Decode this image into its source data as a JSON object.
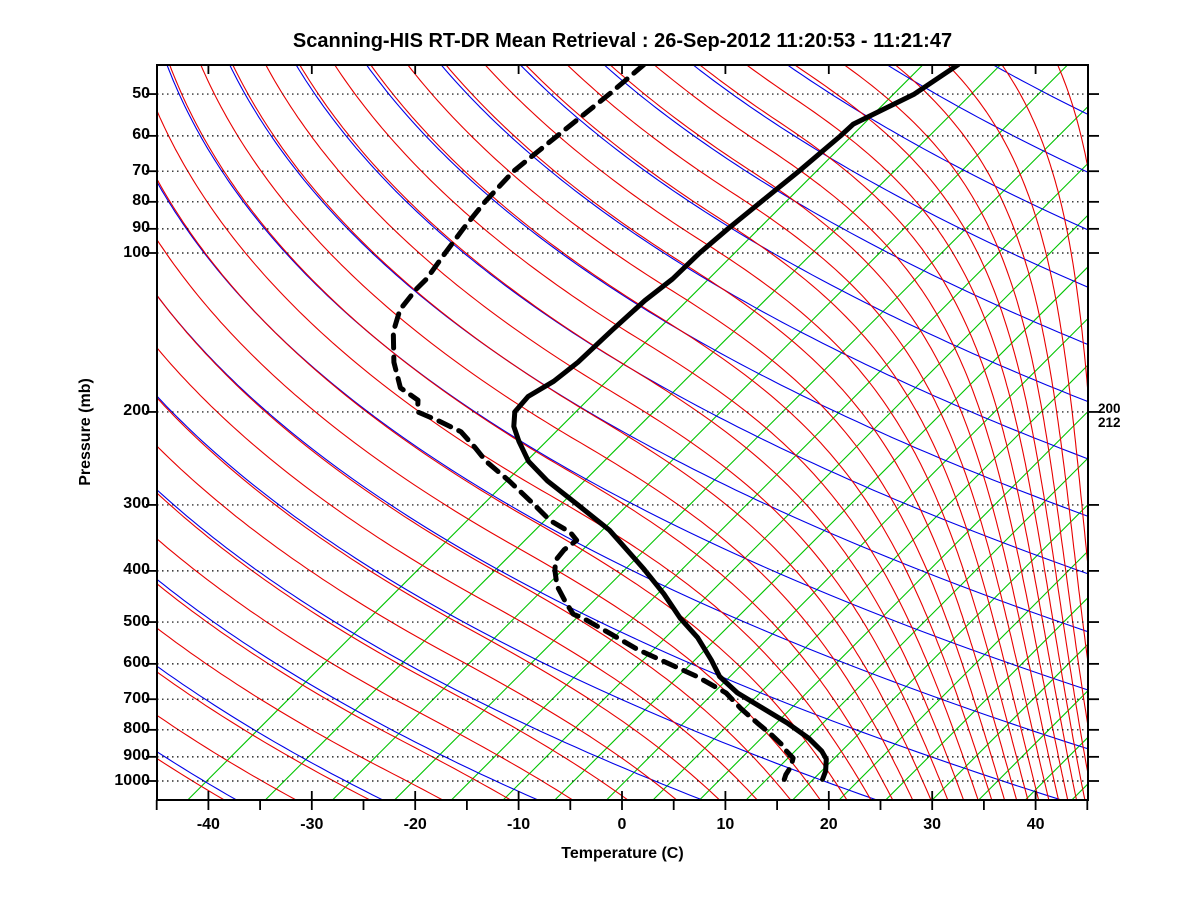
{
  "header": {
    "title": "Scanning-HIS RT-DR Mean Retrieval : 26-Sep-2012 11:20:53 - 11:21:47"
  },
  "axes": {
    "x_label": "Temperature (C)",
    "y_label": "Pressure (mb)",
    "x_tick_labels": [
      "-40",
      "-30",
      "-20",
      "-10",
      "0",
      "10",
      "20",
      "30",
      "40"
    ],
    "x_tick_values": [
      -40,
      -30,
      -20,
      -10,
      0,
      10,
      20,
      30,
      40
    ],
    "y_tick_labels": [
      "50",
      "60",
      "70",
      "80",
      "90",
      "100",
      "200",
      "300",
      "400",
      "500",
      "600",
      "700",
      "800",
      "900",
      "1000"
    ],
    "y_tick_values": [
      50,
      60,
      70,
      80,
      90,
      100,
      200,
      300,
      400,
      500,
      600,
      700,
      800,
      900,
      1000
    ]
  },
  "annotations": {
    "right_labels": [
      "200",
      "212"
    ]
  },
  "colors": {
    "isotherm": "#00c400",
    "dry_adiabat": "#0000e8",
    "moist_adiabat": "#e80000",
    "profile": "#000000",
    "grid": "#000000",
    "frame": "#000000"
  },
  "chart_data": {
    "type": "line",
    "title": "Scanning-HIS RT-DR Mean Retrieval : 26-Sep-2012 11:20:53 - 11:21:47",
    "xlabel": "Temperature (C)",
    "ylabel": "Pressure (mb)",
    "x_axis": {
      "surface_temp_range_c": [
        -45,
        45
      ],
      "major_tick_step": 10,
      "minor_tick_step": 5
    },
    "y_axis": {
      "scale": "log",
      "pressure_range_mb": [
        44,
        1086
      ],
      "gridline_pressures": [
        50,
        60,
        70,
        80,
        90,
        100,
        200,
        300,
        400,
        500,
        600,
        700,
        800,
        900,
        1000
      ]
    },
    "skew_deg": 45,
    "background": {
      "isotherm_surface_temps_c": [
        -42,
        -34.5,
        -28,
        -22,
        -16.5,
        -11.5,
        -6.5,
        -1.5,
        3,
        7.5,
        12,
        16.5,
        21,
        25.5,
        30,
        34.5,
        39,
        43.5
      ],
      "dry_adiabats": {
        "surface_base_k": 250,
        "ratio": 1.06,
        "k_min": -8,
        "k_max": 20
      },
      "moist_adiabats": {
        "surface_base_k": 250,
        "ratio": 1.0296,
        "j_min": -16,
        "j_max": 33
      }
    },
    "right_annotation": {
      "pressure_mb": 200,
      "lines": [
        "200",
        "212"
      ]
    },
    "series": [
      {
        "name": "temperature",
        "line": "solid",
        "width": 5,
        "points_p_t": [
          [
            44,
            -38.6
          ],
          [
            50,
            -40.0
          ],
          [
            57,
            -43.0
          ],
          [
            60,
            -43.1
          ],
          [
            70,
            -43.7
          ],
          [
            80,
            -44.4
          ],
          [
            90,
            -45.0
          ],
          [
            100,
            -45.4
          ],
          [
            112,
            -45.5
          ],
          [
            123,
            -46.1
          ],
          [
            140,
            -46.4
          ],
          [
            161,
            -46.6
          ],
          [
            175,
            -47.1
          ],
          [
            187,
            -48.1
          ],
          [
            200,
            -47.9
          ],
          [
            213,
            -46.6
          ],
          [
            227,
            -44.7
          ],
          [
            248,
            -41.8
          ],
          [
            270,
            -38.1
          ],
          [
            300,
            -32.8
          ],
          [
            335,
            -27.3
          ],
          [
            397,
            -20.2
          ],
          [
            442,
            -15.9
          ],
          [
            491,
            -12.0
          ],
          [
            535,
            -8.4
          ],
          [
            590,
            -4.9
          ],
          [
            634,
            -2.5
          ],
          [
            681,
            0.8
          ],
          [
            730,
            4.9
          ],
          [
            776,
            8.5
          ],
          [
            830,
            12.1
          ],
          [
            878,
            14.6
          ],
          [
            909,
            15.8
          ],
          [
            958,
            16.9
          ],
          [
            993,
            17.4
          ]
        ]
      },
      {
        "name": "dewpoint",
        "line": "dashed",
        "width": 5,
        "points_p_t": [
          [
            44,
            -69.0
          ],
          [
            50,
            -69.5
          ],
          [
            60,
            -70.5
          ],
          [
            70,
            -71.3
          ],
          [
            80,
            -71.1
          ],
          [
            90,
            -70.6
          ],
          [
            100,
            -70.0
          ],
          [
            112,
            -69.3
          ],
          [
            117,
            -69.3
          ],
          [
            128,
            -68.9
          ],
          [
            141,
            -67.4
          ],
          [
            161,
            -64.4
          ],
          [
            180,
            -61.3
          ],
          [
            190,
            -58.4
          ],
          [
            200,
            -57.3
          ],
          [
            208,
            -54.4
          ],
          [
            218,
            -51.2
          ],
          [
            233,
            -48.4
          ],
          [
            248,
            -45.9
          ],
          [
            270,
            -41.8
          ],
          [
            298,
            -37.3
          ],
          [
            321,
            -34.0
          ],
          [
            338,
            -30.9
          ],
          [
            350,
            -29.5
          ],
          [
            365,
            -29.8
          ],
          [
            382,
            -29.6
          ],
          [
            399,
            -28.7
          ],
          [
            427,
            -27.0
          ],
          [
            457,
            -24.7
          ],
          [
            483,
            -22.7
          ],
          [
            492,
            -21.3
          ],
          [
            527,
            -17.1
          ],
          [
            563,
            -13.1
          ],
          [
            590,
            -9.8
          ],
          [
            634,
            -4.7
          ],
          [
            681,
            -0.3
          ],
          [
            730,
            2.7
          ],
          [
            776,
            5.6
          ],
          [
            820,
            8.3
          ],
          [
            857,
            10.3
          ],
          [
            878,
            11.2
          ],
          [
            905,
            12.5
          ],
          [
            938,
            13.1
          ],
          [
            973,
            13.4
          ],
          [
            993,
            13.7
          ]
        ]
      }
    ]
  }
}
